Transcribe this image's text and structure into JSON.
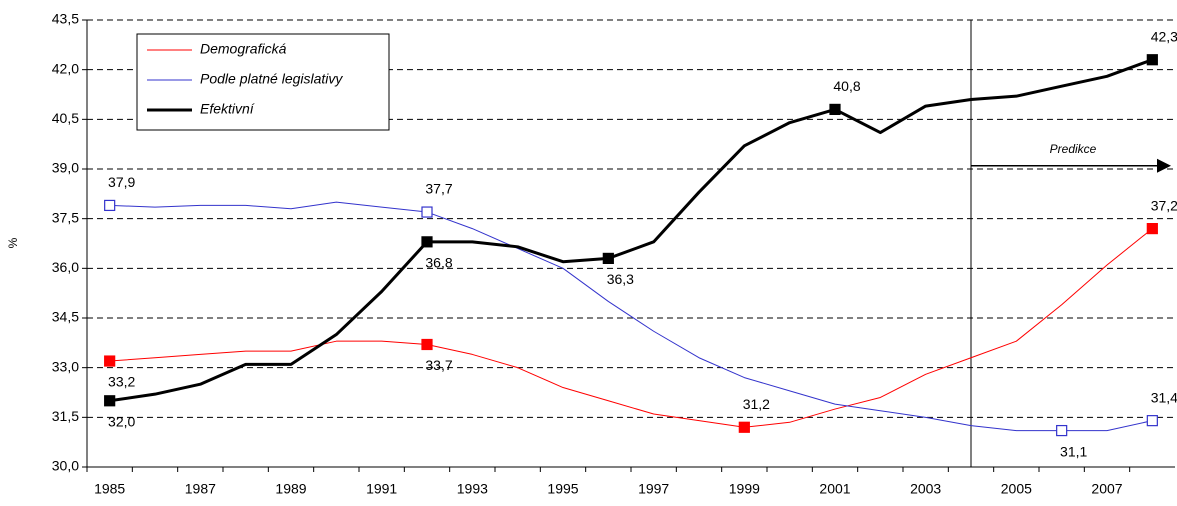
{
  "chart_data": {
    "type": "line",
    "y_label": "%",
    "annotation": "Predikce",
    "categories": [
      "1985",
      null,
      "1987",
      null,
      "1989",
      null,
      "1991",
      null,
      "1993",
      null,
      "1995",
      null,
      "1997",
      null,
      "1999",
      null,
      "2001",
      null,
      "2003",
      null,
      "2005",
      null,
      "2007",
      null
    ],
    "ylim": [
      30,
      43.5
    ],
    "yticks": [
      {
        "value": 30,
        "label": "30,0"
      },
      {
        "value": 31.5,
        "label": "31,5"
      },
      {
        "value": 33,
        "label": "33,0"
      },
      {
        "value": 34.5,
        "label": "34,5"
      },
      {
        "value": 36,
        "label": "36,0"
      },
      {
        "value": 37.5,
        "label": "37,5"
      },
      {
        "value": 39,
        "label": "39,0"
      },
      {
        "value": 40.5,
        "label": "40,5"
      },
      {
        "value": 42,
        "label": "42,0"
      },
      {
        "value": 43.5,
        "label": "43,5"
      }
    ],
    "grid": true,
    "legend": "top-left",
    "series": [
      {
        "name": "Demografická",
        "color": "#ff0000",
        "width": 1,
        "values": [
          33.2,
          33.3,
          33.4,
          33.5,
          33.5,
          33.8,
          33.8,
          33.7,
          33.4,
          33.0,
          32.4,
          32.0,
          31.6,
          31.4,
          31.2,
          31.35,
          31.75,
          32.1,
          32.8,
          33.3,
          33.8,
          34.9,
          36.1,
          37.2
        ],
        "value_labels": [
          "33,2",
          null,
          null,
          null,
          null,
          null,
          null,
          "33,7",
          null,
          null,
          null,
          null,
          null,
          null,
          "31,2",
          null,
          null,
          null,
          null,
          null,
          null,
          null,
          null,
          "37,2"
        ]
      },
      {
        "name": "Podle platné legislativy",
        "color": "#3333cc",
        "width": 1,
        "values": [
          37.9,
          37.85,
          37.9,
          37.9,
          37.8,
          38.0,
          37.85,
          37.7,
          37.2,
          36.6,
          36.0,
          35.0,
          34.1,
          33.3,
          32.7,
          32.3,
          31.9,
          31.7,
          31.5,
          31.25,
          31.1,
          31.1,
          31.1,
          31.4
        ],
        "value_labels": [
          "37,9",
          null,
          null,
          null,
          null,
          null,
          null,
          "37,7",
          null,
          null,
          null,
          null,
          null,
          null,
          null,
          null,
          null,
          null,
          null,
          null,
          null,
          "31,1",
          null,
          "31,4"
        ]
      },
      {
        "name": "Efektivní",
        "color": "#000000",
        "width": 3,
        "values": [
          32.0,
          32.2,
          32.5,
          33.1,
          33.1,
          34.0,
          35.3,
          36.8,
          36.8,
          36.65,
          36.2,
          36.3,
          36.8,
          38.3,
          39.7,
          40.4,
          40.8,
          40.1,
          40.9,
          41.1,
          41.2,
          41.5,
          41.8,
          42.3
        ],
        "value_labels": [
          "32,0",
          null,
          null,
          null,
          null,
          null,
          null,
          "36,8",
          null,
          null,
          null,
          "36,3",
          null,
          null,
          null,
          null,
          "40,8",
          null,
          null,
          null,
          null,
          null,
          null,
          "42,3"
        ]
      }
    ]
  }
}
